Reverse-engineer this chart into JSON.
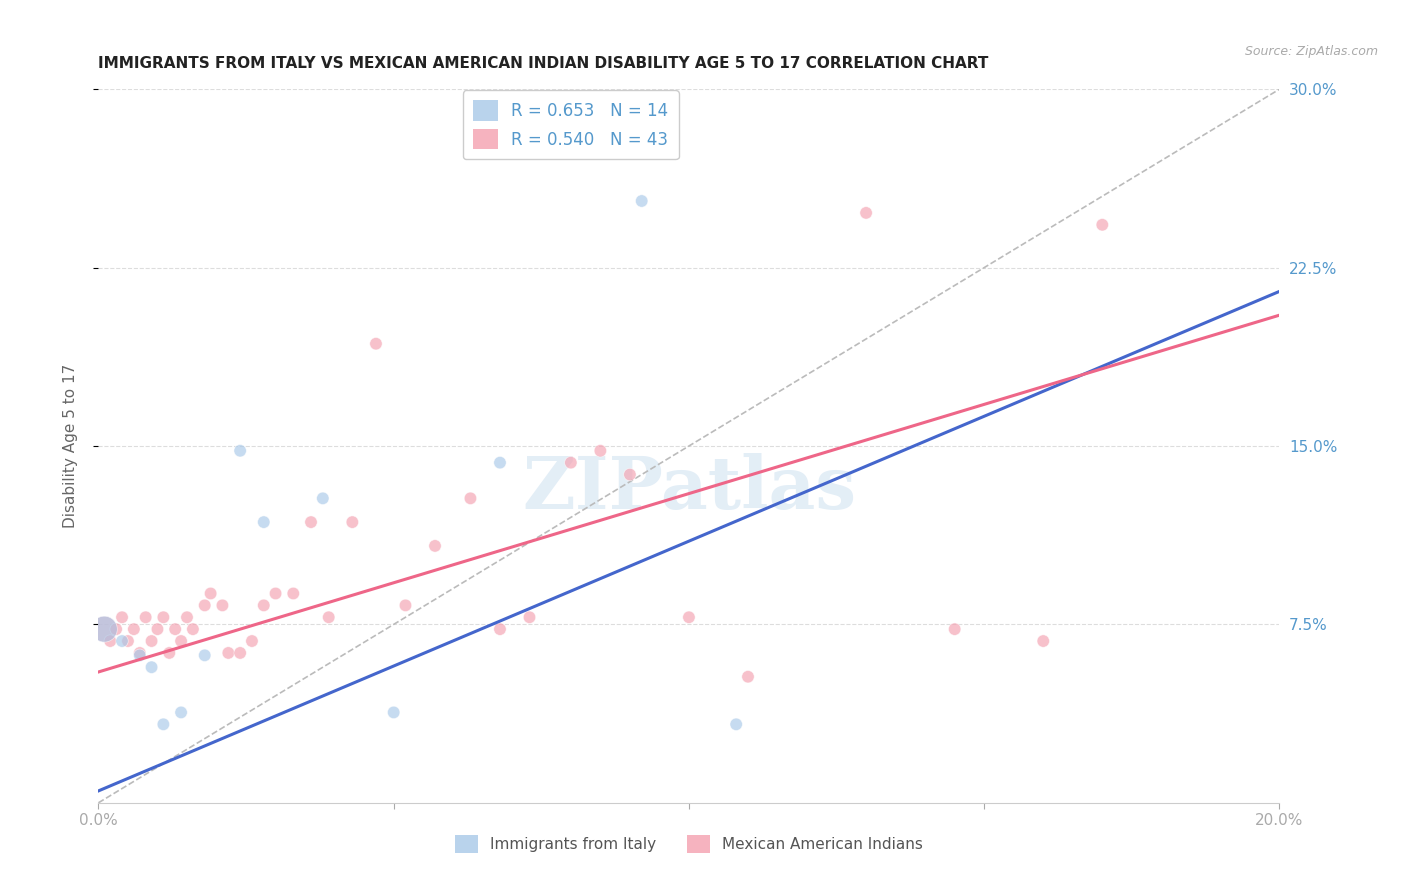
{
  "title": "IMMIGRANTS FROM ITALY VS MEXICAN AMERICAN INDIAN DISABILITY AGE 5 TO 17 CORRELATION CHART",
  "source": "Source: ZipAtlas.com",
  "ylabel": "Disability Age 5 to 17",
  "xlim": [
    0.0,
    0.2
  ],
  "ylim": [
    0.0,
    0.3
  ],
  "xticks": [
    0.0,
    0.05,
    0.1,
    0.15,
    0.2
  ],
  "xtick_labels": [
    "0.0%",
    "",
    "",
    "",
    "20.0%"
  ],
  "ytick_labels_right": [
    "7.5%",
    "15.0%",
    "22.5%",
    "30.0%"
  ],
  "yticks_right": [
    0.075,
    0.15,
    0.225,
    0.3
  ],
  "legend_labels": [
    "Immigrants from Italy",
    "Mexican American Indians"
  ],
  "italy_R": 0.653,
  "italy_N": 14,
  "mexican_R": 0.54,
  "mexican_N": 43,
  "italy_color": "#a8c8e8",
  "mexican_color": "#f4a0b0",
  "italy_line_color": "#4466cc",
  "mexican_line_color": "#ee6688",
  "diagonal_color": "#bbbbbb",
  "watermark_text": "ZIPatlas",
  "background_color": "#ffffff",
  "grid_color": "#dddddd",
  "label_color": "#5599cc",
  "title_color": "#222222",
  "italy_scatter_x": [
    0.001,
    0.004,
    0.007,
    0.009,
    0.011,
    0.014,
    0.018,
    0.024,
    0.028,
    0.038,
    0.05,
    0.068,
    0.092,
    0.108
  ],
  "italy_scatter_y": [
    0.073,
    0.068,
    0.062,
    0.057,
    0.033,
    0.038,
    0.062,
    0.148,
    0.118,
    0.128,
    0.038,
    0.143,
    0.253,
    0.033
  ],
  "italy_scatter_sizes": [
    350,
    80,
    80,
    80,
    80,
    80,
    80,
    80,
    80,
    80,
    80,
    80,
    80,
    80
  ],
  "mexico_scatter_x": [
    0.001,
    0.002,
    0.003,
    0.004,
    0.005,
    0.006,
    0.007,
    0.008,
    0.009,
    0.01,
    0.011,
    0.012,
    0.013,
    0.014,
    0.015,
    0.016,
    0.018,
    0.019,
    0.021,
    0.022,
    0.024,
    0.026,
    0.028,
    0.03,
    0.033,
    0.036,
    0.039,
    0.043,
    0.047,
    0.052,
    0.057,
    0.063,
    0.068,
    0.073,
    0.08,
    0.085,
    0.09,
    0.1,
    0.11,
    0.13,
    0.145,
    0.16,
    0.17
  ],
  "mexico_scatter_y": [
    0.073,
    0.068,
    0.073,
    0.078,
    0.068,
    0.073,
    0.063,
    0.078,
    0.068,
    0.073,
    0.078,
    0.063,
    0.073,
    0.068,
    0.078,
    0.073,
    0.083,
    0.088,
    0.083,
    0.063,
    0.063,
    0.068,
    0.083,
    0.088,
    0.088,
    0.118,
    0.078,
    0.118,
    0.193,
    0.083,
    0.108,
    0.128,
    0.073,
    0.078,
    0.143,
    0.148,
    0.138,
    0.078,
    0.053,
    0.248,
    0.073,
    0.068,
    0.243
  ],
  "mexico_scatter_sizes": [
    350,
    80,
    80,
    80,
    80,
    80,
    80,
    80,
    80,
    80,
    80,
    80,
    80,
    80,
    80,
    80,
    80,
    80,
    80,
    80,
    80,
    80,
    80,
    80,
    80,
    80,
    80,
    80,
    80,
    80,
    80,
    80,
    80,
    80,
    80,
    80,
    80,
    80,
    80,
    80,
    80,
    80,
    80
  ],
  "italy_line_x0": 0.0,
  "italy_line_y0": 0.005,
  "italy_line_x1": 0.2,
  "italy_line_y1": 0.215,
  "mexican_line_x0": 0.0,
  "mexican_line_y0": 0.055,
  "mexican_line_x1": 0.2,
  "mexican_line_y1": 0.205
}
